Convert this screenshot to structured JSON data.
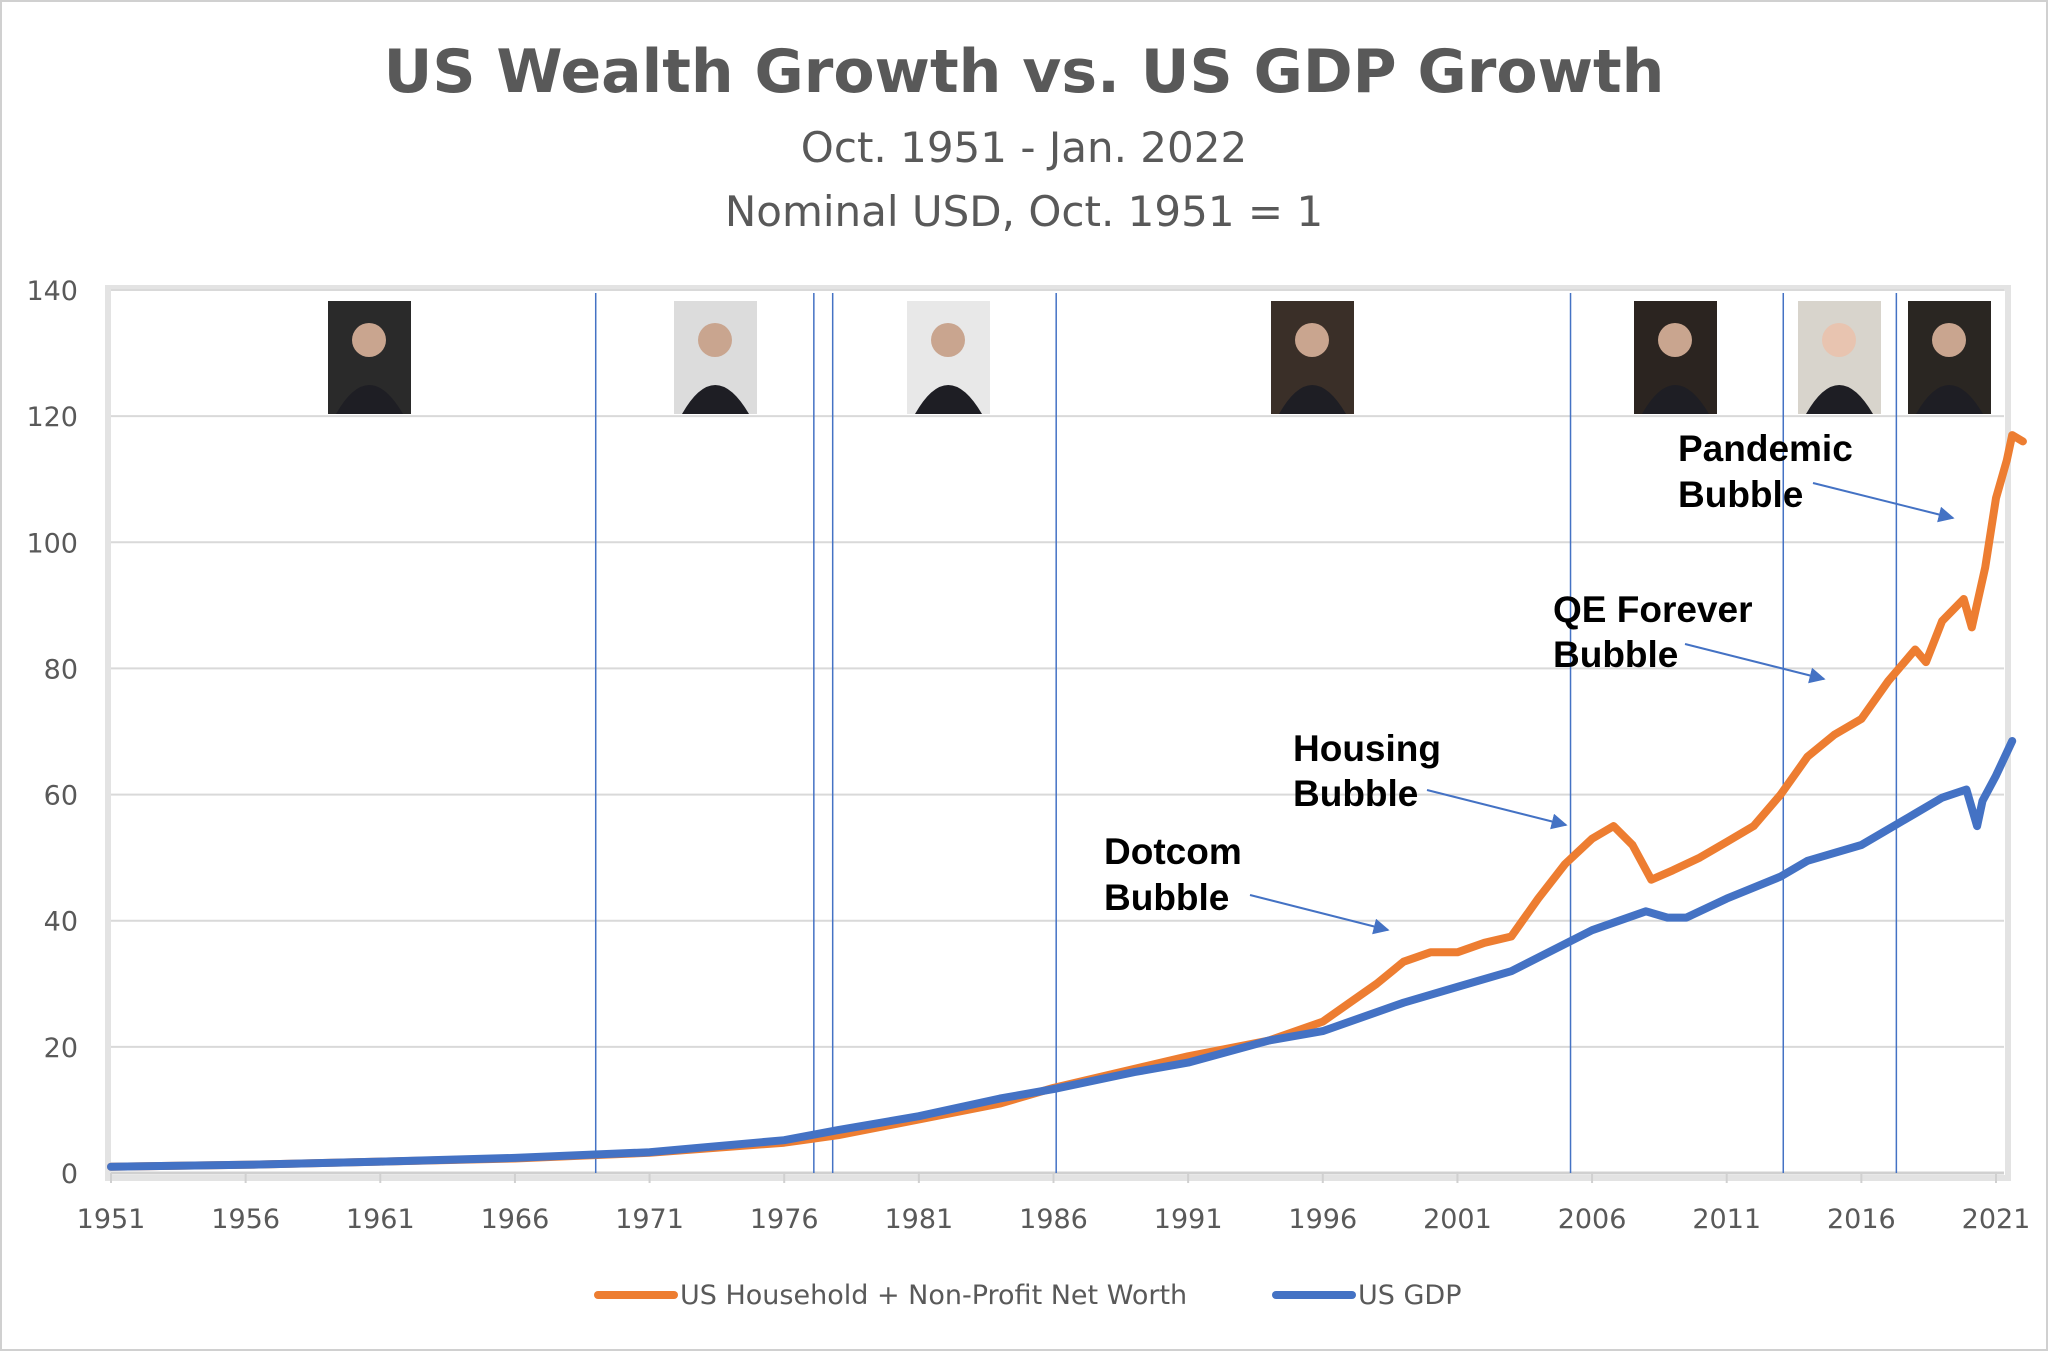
{
  "chart_data": {
    "type": "line",
    "title": "US Wealth Growth vs. US GDP Growth",
    "subtitle": [
      "Oct. 1951 - Jan. 2022",
      "Nominal USD, Oct. 1951 = 1"
    ],
    "xlabel": "",
    "ylabel": "",
    "xlim": [
      1951,
      2021.5
    ],
    "ylim": [
      0,
      140
    ],
    "x_ticks": [
      "1951",
      "1956",
      "1961",
      "1966",
      "1971",
      "1976",
      "1981",
      "1986",
      "1991",
      "1996",
      "2001",
      "2006",
      "2011",
      "2016",
      "2021"
    ],
    "y_ticks": [
      0,
      20,
      40,
      60,
      80,
      100,
      120,
      140
    ],
    "grid": "horizontal",
    "legend_position": "bottom",
    "series": [
      {
        "name": "US Household + Non-Profit Net Worth",
        "color": "#ED7D31",
        "points": [
          [
            1951,
            1
          ],
          [
            1956,
            1.3
          ],
          [
            1961,
            1.8
          ],
          [
            1966,
            2.3
          ],
          [
            1971,
            3.2
          ],
          [
            1976,
            4.8
          ],
          [
            1978,
            6
          ],
          [
            1981,
            8.5
          ],
          [
            1984,
            11
          ],
          [
            1986,
            13.5
          ],
          [
            1989,
            16.5
          ],
          [
            1991,
            18.5
          ],
          [
            1994,
            21
          ],
          [
            1996,
            24
          ],
          [
            1997,
            27
          ],
          [
            1998,
            30
          ],
          [
            1999,
            33.5
          ],
          [
            2000,
            35
          ],
          [
            2001,
            35
          ],
          [
            2002,
            36.5
          ],
          [
            2003,
            37.5
          ],
          [
            2004,
            43.5
          ],
          [
            2005,
            49
          ],
          [
            2006,
            53
          ],
          [
            2006.8,
            55
          ],
          [
            2007.5,
            52
          ],
          [
            2008.2,
            46.5
          ],
          [
            2009,
            48
          ],
          [
            2010,
            50
          ],
          [
            2011,
            52.5
          ],
          [
            2012,
            55
          ],
          [
            2013,
            60
          ],
          [
            2014,
            66
          ],
          [
            2015,
            69.5
          ],
          [
            2016,
            72
          ],
          [
            2017,
            78
          ],
          [
            2018,
            83
          ],
          [
            2018.4,
            81
          ],
          [
            2019,
            87.5
          ],
          [
            2019.8,
            91
          ],
          [
            2020.1,
            86.5
          ],
          [
            2020.6,
            96
          ],
          [
            2021,
            107
          ],
          [
            2021.4,
            113
          ],
          [
            2021.6,
            117
          ],
          [
            2022,
            116
          ]
        ]
      },
      {
        "name": "US GDP",
        "color": "#4472C4",
        "points": [
          [
            1951,
            1
          ],
          [
            1956,
            1.3
          ],
          [
            1961,
            1.8
          ],
          [
            1966,
            2.4
          ],
          [
            1971,
            3.3
          ],
          [
            1976,
            5.2
          ],
          [
            1978,
            6.8
          ],
          [
            1981,
            9
          ],
          [
            1984,
            11.8
          ],
          [
            1986,
            13.3
          ],
          [
            1989,
            16
          ],
          [
            1991,
            17.5
          ],
          [
            1994,
            21
          ],
          [
            1996,
            22.5
          ],
          [
            1999,
            27
          ],
          [
            2001,
            29.5
          ],
          [
            2003,
            32
          ],
          [
            2006,
            38.5
          ],
          [
            2008,
            41.5
          ],
          [
            2008.8,
            40.5
          ],
          [
            2009.5,
            40.5
          ],
          [
            2011,
            43.5
          ],
          [
            2013,
            47
          ],
          [
            2014,
            49.5
          ],
          [
            2016,
            52
          ],
          [
            2018,
            57
          ],
          [
            2019,
            59.5
          ],
          [
            2019.9,
            60.8
          ],
          [
            2020.3,
            55
          ],
          [
            2020.5,
            59
          ],
          [
            2021,
            63
          ],
          [
            2021.6,
            68.5
          ]
        ]
      }
    ],
    "fed_chair_transitions": [
      1969.0,
      1977.1,
      1977.8,
      1986.1,
      2005.2,
      2013.1,
      2017.3
    ],
    "annotations": [
      {
        "lines": [
          "Dotcom",
          "Bubble"
        ]
      },
      {
        "lines": [
          "Housing",
          "Bubble"
        ]
      },
      {
        "lines": [
          "QE Forever",
          "Bubble"
        ]
      },
      {
        "lines": [
          "Pandemic",
          "Bubble"
        ]
      }
    ],
    "colors": {
      "grid": "#D9D9D9",
      "transition_line": "#4472C4",
      "text": "#595959"
    }
  }
}
